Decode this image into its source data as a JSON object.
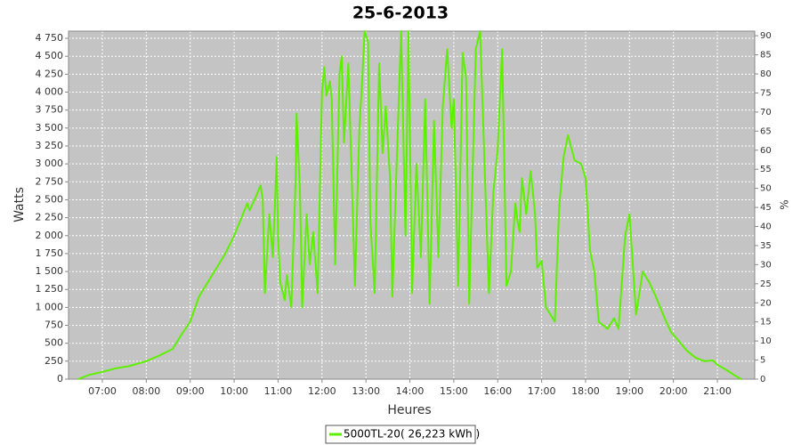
{
  "chart_data": {
    "type": "line",
    "title": "25-6-2013",
    "xlabel": "Heures",
    "ylabel": "Watts",
    "y2label": "%",
    "x": [
      6.45,
      6.7,
      7.0,
      7.3,
      7.6,
      8.0,
      8.3,
      8.6,
      8.8,
      9.0,
      9.2,
      9.5,
      9.8,
      10.0,
      10.2,
      10.3,
      10.35,
      10.5,
      10.6,
      10.65,
      10.7,
      10.8,
      10.88,
      10.97,
      11.0,
      11.05,
      11.15,
      11.2,
      11.3,
      11.4,
      11.42,
      11.5,
      11.55,
      11.65,
      11.72,
      11.8,
      11.9,
      12.0,
      12.05,
      12.1,
      12.18,
      12.22,
      12.3,
      12.4,
      12.45,
      12.5,
      12.6,
      12.75,
      12.85,
      12.9,
      12.97,
      13.05,
      13.1,
      13.2,
      13.3,
      13.38,
      13.45,
      13.55,
      13.6,
      13.7,
      13.8,
      13.9,
      13.97,
      14.05,
      14.15,
      14.25,
      14.35,
      14.45,
      14.55,
      14.65,
      14.75,
      14.85,
      14.95,
      15.0,
      15.1,
      15.2,
      15.28,
      15.35,
      15.5,
      15.6,
      15.7,
      15.8,
      15.9,
      16.0,
      16.1,
      16.2,
      16.3,
      16.4,
      16.45,
      16.5,
      16.55,
      16.65,
      16.75,
      16.85,
      16.9,
      17.0,
      17.1,
      17.2,
      17.3,
      17.4,
      17.5,
      17.6,
      17.75,
      17.9,
      18.0,
      18.1,
      18.2,
      18.3,
      18.5,
      18.65,
      18.75,
      18.9,
      19.0,
      19.15,
      19.3,
      19.45,
      19.6,
      19.8,
      19.95,
      20.1,
      20.3,
      20.5,
      20.7,
      20.9,
      21.0,
      21.2,
      21.4,
      21.55
    ],
    "series": [
      {
        "name": "5000TL-20( 26,223 kWh )",
        "color": "#5ef000",
        "values": [
          0,
          60,
          100,
          150,
          180,
          250,
          330,
          420,
          620,
          800,
          1150,
          1450,
          1750,
          2000,
          2300,
          2450,
          2350,
          2550,
          2700,
          2500,
          1200,
          2300,
          1700,
          3100,
          2000,
          1350,
          1100,
          1450,
          1000,
          2800,
          3700,
          2600,
          1000,
          2300,
          1600,
          2050,
          1200,
          4000,
          4350,
          3950,
          4150,
          3900,
          1600,
          4250,
          4500,
          3300,
          4400,
          1300,
          3500,
          4000,
          4850,
          4700,
          2200,
          1200,
          4400,
          3150,
          3800,
          2800,
          1150,
          3000,
          4850,
          2000,
          4850,
          1200,
          3000,
          1700,
          3900,
          1050,
          3600,
          1700,
          3800,
          4600,
          3500,
          3900,
          1300,
          4550,
          4200,
          1050,
          4600,
          4850,
          3000,
          1200,
          2600,
          3200,
          4600,
          1300,
          1500,
          2450,
          2200,
          2050,
          2800,
          2300,
          2900,
          2300,
          1550,
          1650,
          1000,
          900,
          800,
          2400,
          3100,
          3400,
          3050,
          3000,
          2800,
          1800,
          1500,
          800,
          700,
          850,
          700,
          2000,
          2300,
          900,
          1500,
          1350,
          1150,
          850,
          650,
          550,
          400,
          300,
          250,
          260,
          200,
          130,
          50,
          0
        ]
      }
    ],
    "xlim": [
      6.23,
      21.85
    ],
    "xticks": [
      {
        "value": 7,
        "label": "07:00"
      },
      {
        "value": 8,
        "label": "08:00"
      },
      {
        "value": 9,
        "label": "09:00"
      },
      {
        "value": 10,
        "label": "10:00"
      },
      {
        "value": 11,
        "label": "11:00"
      },
      {
        "value": 12,
        "label": "12:00"
      },
      {
        "value": 13,
        "label": "13:00"
      },
      {
        "value": 14,
        "label": "14:00"
      },
      {
        "value": 15,
        "label": "15:00"
      },
      {
        "value": 16,
        "label": "16:00"
      },
      {
        "value": 17,
        "label": "17:00"
      },
      {
        "value": 18,
        "label": "18:00"
      },
      {
        "value": 19,
        "label": "19:00"
      },
      {
        "value": 20,
        "label": "20:00"
      },
      {
        "value": 21,
        "label": "21:00"
      }
    ],
    "ylim": [
      0,
      4850
    ],
    "yticks": [
      0,
      250,
      500,
      750,
      {
        "value": 1000,
        "label": "1 000"
      },
      {
        "value": 1250,
        "label": "1 250"
      },
      {
        "value": 1500,
        "label": "1 500"
      },
      {
        "value": 1750,
        "label": "1 750"
      },
      {
        "value": 2000,
        "label": "2 000"
      },
      {
        "value": 2250,
        "label": "2 250"
      },
      {
        "value": 2500,
        "label": "2 500"
      },
      {
        "value": 2750,
        "label": "2 750"
      },
      {
        "value": 3000,
        "label": "3 000"
      },
      {
        "value": 3250,
        "label": "3 250"
      },
      {
        "value": 3500,
        "label": "3 500"
      },
      {
        "value": 3750,
        "label": "3 750"
      },
      {
        "value": 4000,
        "label": "4 000"
      },
      {
        "value": 4250,
        "label": "4 250"
      },
      {
        "value": 4500,
        "label": "4 500"
      },
      {
        "value": 4750,
        "label": "4 750"
      }
    ],
    "y2lim": [
      0,
      91.2
    ],
    "y2ticks": [
      0,
      5,
      10,
      15,
      20,
      25,
      30,
      35,
      40,
      45,
      50,
      55,
      60,
      65,
      70,
      75,
      80,
      85,
      90
    ],
    "grid": true,
    "legend": "bottom"
  }
}
